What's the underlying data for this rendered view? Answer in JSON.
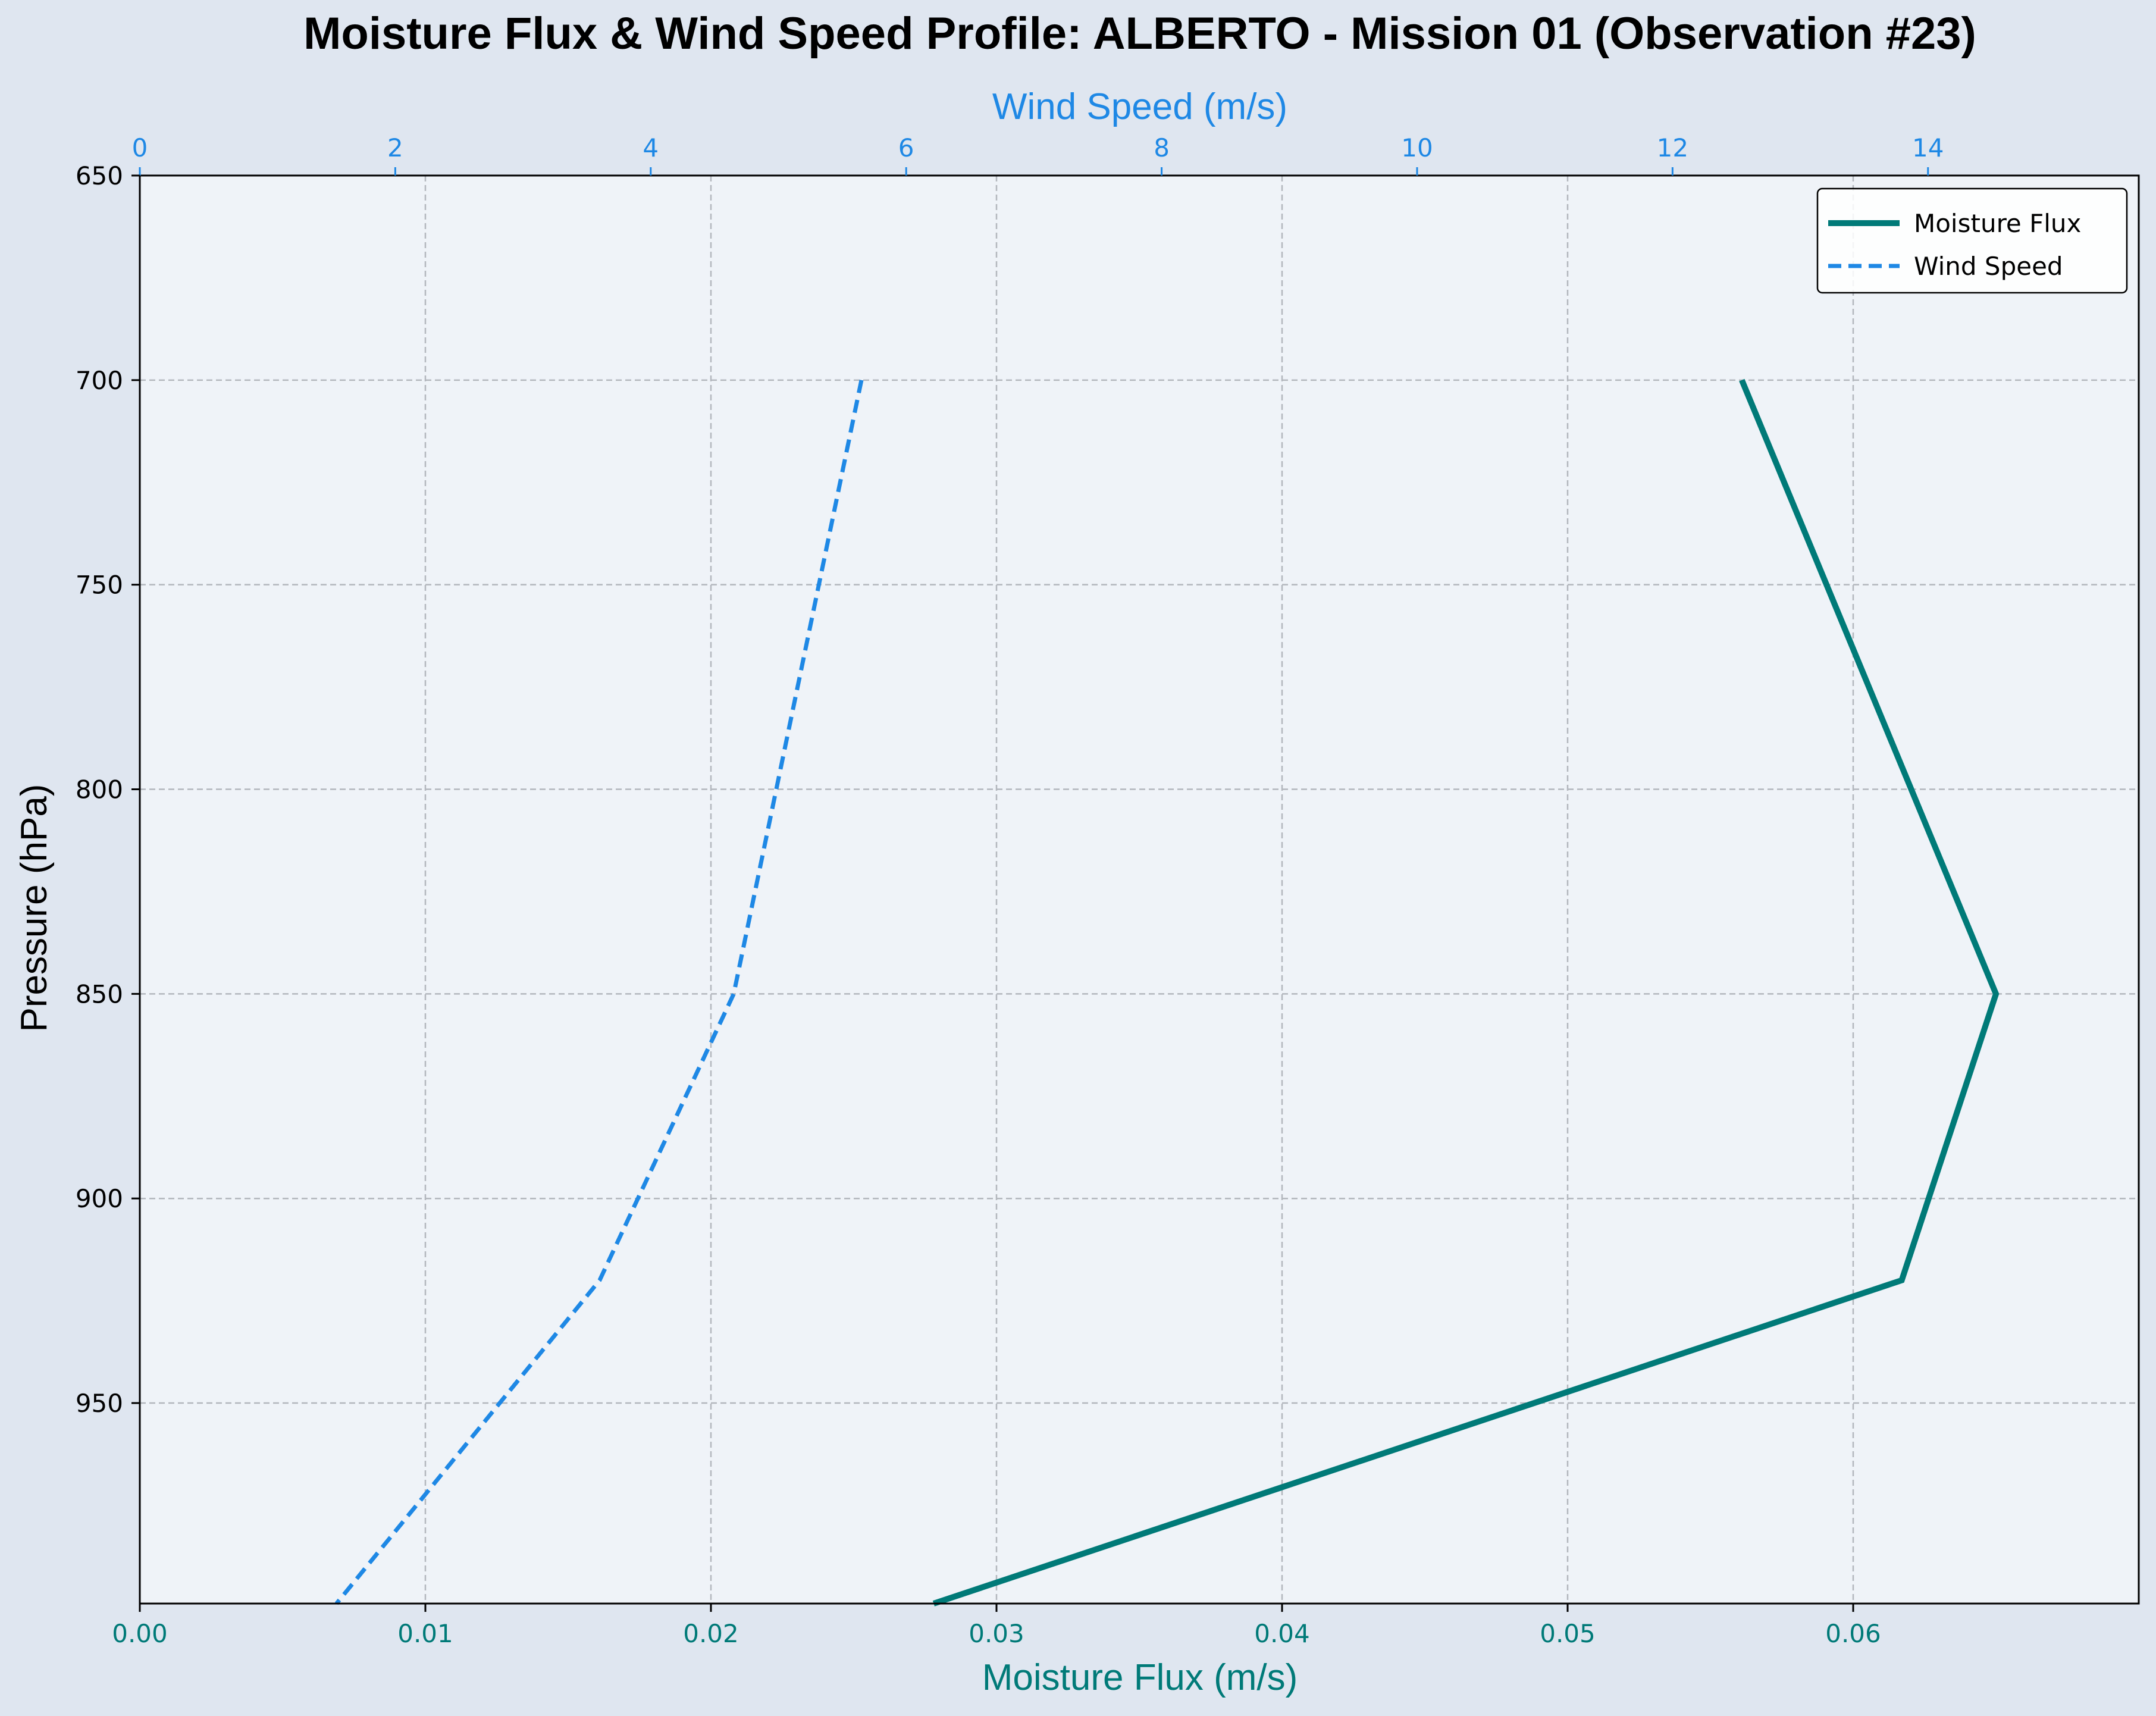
{
  "chart_data": {
    "type": "line",
    "title": "Moisture Flux & Wind Speed Profile: ALBERTO - Mission 01 (Observation #23)",
    "ylabel": "Pressure (hPa)",
    "xlabel_bottom": "Moisture Flux (m/s)",
    "xlabel_top": "Wind Speed (m/s)",
    "ylim": [
      650,
      999
    ],
    "y_inverted": true,
    "xlim_bottom": [
      0,
      0.07
    ],
    "xlim_top": [
      0,
      15.65
    ],
    "y_ticks": [
      "650",
      "700",
      "750",
      "800",
      "850",
      "900",
      "950"
    ],
    "y_tick_values": [
      650,
      700,
      750,
      800,
      850,
      900,
      950
    ],
    "x_bottom_ticks": [
      "0.00",
      "0.01",
      "0.02",
      "0.03",
      "0.04",
      "0.05",
      "0.06"
    ],
    "x_bottom_tick_values": [
      0,
      0.01,
      0.02,
      0.03,
      0.04,
      0.05,
      0.06
    ],
    "x_top_ticks": [
      "0",
      "2",
      "4",
      "6",
      "8",
      "10",
      "12",
      "14"
    ],
    "x_top_tick_values": [
      0,
      2,
      4,
      6,
      8,
      10,
      12,
      14
    ],
    "grid": true,
    "legend_position": "top-right",
    "series": [
      {
        "name": "Moisture Flux",
        "axis": "bottom",
        "color": "#007a78",
        "style": "solid",
        "pressure": [
          700,
          850,
          920,
          999
        ],
        "values": [
          0.0561,
          0.065,
          0.0617,
          0.0278
        ]
      },
      {
        "name": "Wind Speed",
        "axis": "top",
        "color": "#1e88e5",
        "style": "dashed",
        "pressure": [
          700,
          850,
          920,
          999
        ],
        "values": [
          5.65,
          4.65,
          3.6,
          1.54
        ]
      }
    ]
  }
}
